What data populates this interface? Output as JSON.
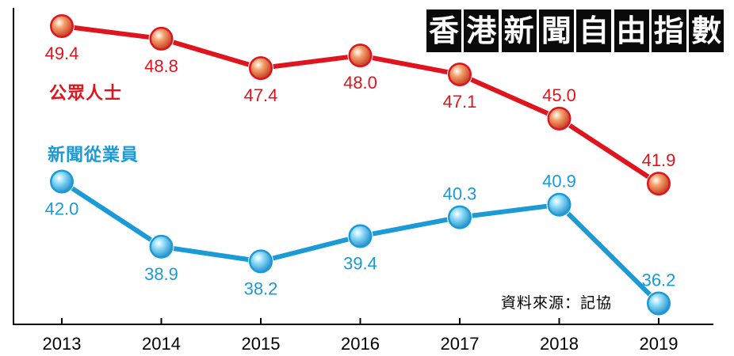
{
  "chart_data": {
    "type": "line",
    "title": "香港新聞自由指數",
    "source": "資料來源：記協",
    "categories": [
      "2013",
      "2014",
      "2015",
      "2016",
      "2017",
      "2018",
      "2019"
    ],
    "series": [
      {
        "name": "公眾人士",
        "color": "#e0141e",
        "values": [
          49.4,
          48.8,
          47.4,
          48.0,
          47.1,
          45.0,
          41.9
        ]
      },
      {
        "name": "新聞從業員",
        "color": "#1a9ad6",
        "values": [
          42.0,
          38.9,
          38.2,
          39.4,
          40.3,
          40.9,
          36.2
        ]
      }
    ],
    "value_labels": {
      "public": [
        "49.4",
        "48.8",
        "47.4",
        "48.0",
        "47.1",
        "45.0",
        "41.9"
      ],
      "journalists": [
        "42.0",
        "38.9",
        "38.2",
        "39.4",
        "40.3",
        "40.9",
        "36.2"
      ]
    },
    "xlabel": "",
    "ylabel": "",
    "grid": false,
    "legend": "inline labels at left"
  }
}
